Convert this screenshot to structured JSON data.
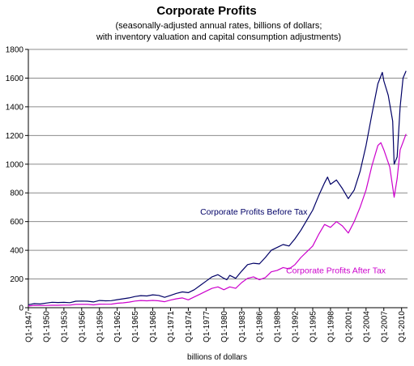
{
  "chart_data": {
    "type": "line",
    "title": "Corporate Profits",
    "subtitle_lines": [
      "(seasonally-adjusted annual rates, billions of dollars;",
      "with inventory valuation and capital consumption adjustments)"
    ],
    "xlabel": "billions of dollars",
    "ylabel": "",
    "ylim": [
      0,
      1800
    ],
    "yticks": [
      0,
      200,
      400,
      600,
      800,
      1000,
      1200,
      1400,
      1600,
      1800
    ],
    "xlim": [
      1947.0,
      2011.0
    ],
    "xticks": [
      "Q1-1947",
      "Q1-1950",
      "Q1-1953",
      "Q1-1956",
      "Q1-1959",
      "Q1-1962",
      "Q1-1965",
      "Q1-1968",
      "Q1-1971",
      "Q1-1974",
      "Q1-1977",
      "Q1-1980",
      "Q1-1983",
      "Q1-1986",
      "Q1-1989",
      "Q1-1992",
      "Q1-1995",
      "Q1-1998",
      "Q1-2001",
      "Q1-2004",
      "Q1-2007",
      "Q1-2010"
    ],
    "grid": true,
    "series": [
      {
        "name": "Corporate Profits Before Tax",
        "color": "#000066",
        "points": [
          [
            1947.0,
            21
          ],
          [
            1948.0,
            28
          ],
          [
            1949.0,
            26
          ],
          [
            1950.0,
            32
          ],
          [
            1951.0,
            38
          ],
          [
            1952.0,
            36
          ],
          [
            1953.0,
            37
          ],
          [
            1954.0,
            35
          ],
          [
            1955.0,
            45
          ],
          [
            1956.0,
            46
          ],
          [
            1957.0,
            45
          ],
          [
            1958.0,
            40
          ],
          [
            1959.0,
            50
          ],
          [
            1960.0,
            48
          ],
          [
            1961.0,
            49
          ],
          [
            1962.0,
            56
          ],
          [
            1963.0,
            62
          ],
          [
            1964.0,
            68
          ],
          [
            1965.0,
            78
          ],
          [
            1966.0,
            84
          ],
          [
            1967.0,
            82
          ],
          [
            1968.0,
            90
          ],
          [
            1969.0,
            86
          ],
          [
            1970.0,
            72
          ],
          [
            1971.0,
            86
          ],
          [
            1972.0,
            100
          ],
          [
            1973.0,
            110
          ],
          [
            1974.0,
            105
          ],
          [
            1975.0,
            125
          ],
          [
            1976.0,
            155
          ],
          [
            1977.0,
            185
          ],
          [
            1978.0,
            215
          ],
          [
            1979.0,
            230
          ],
          [
            1980.0,
            205
          ],
          [
            1980.5,
            195
          ],
          [
            1981.0,
            225
          ],
          [
            1982.0,
            205
          ],
          [
            1983.0,
            255
          ],
          [
            1984.0,
            300
          ],
          [
            1985.0,
            310
          ],
          [
            1986.0,
            305
          ],
          [
            1987.0,
            350
          ],
          [
            1988.0,
            400
          ],
          [
            1989.0,
            420
          ],
          [
            1990.0,
            440
          ],
          [
            1991.0,
            430
          ],
          [
            1992.0,
            480
          ],
          [
            1993.0,
            540
          ],
          [
            1994.0,
            610
          ],
          [
            1995.0,
            680
          ],
          [
            1996.0,
            780
          ],
          [
            1997.0,
            870
          ],
          [
            1997.5,
            910
          ],
          [
            1998.0,
            860
          ],
          [
            1999.0,
            890
          ],
          [
            2000.0,
            830
          ],
          [
            2001.0,
            760
          ],
          [
            2002.0,
            820
          ],
          [
            2003.0,
            950
          ],
          [
            2004.0,
            1130
          ],
          [
            2005.0,
            1350
          ],
          [
            2006.0,
            1560
          ],
          [
            2006.75,
            1640
          ],
          [
            2007.0,
            1580
          ],
          [
            2007.75,
            1480
          ],
          [
            2008.5,
            1300
          ],
          [
            2008.75,
            1000
          ],
          [
            2009.25,
            1050
          ],
          [
            2009.75,
            1400
          ],
          [
            2010.25,
            1600
          ],
          [
            2010.75,
            1650
          ]
        ]
      },
      {
        "name": "Corporate Profits After Tax",
        "color": "#cc00cc",
        "points": [
          [
            1947.0,
            12
          ],
          [
            1948.0,
            16
          ],
          [
            1949.0,
            15
          ],
          [
            1950.0,
            16
          ],
          [
            1951.0,
            17
          ],
          [
            1952.0,
            17
          ],
          [
            1953.0,
            18
          ],
          [
            1954.0,
            18
          ],
          [
            1955.0,
            23
          ],
          [
            1956.0,
            23
          ],
          [
            1957.0,
            23
          ],
          [
            1958.0,
            20
          ],
          [
            1959.0,
            25
          ],
          [
            1960.0,
            24
          ],
          [
            1961.0,
            25
          ],
          [
            1962.0,
            31
          ],
          [
            1963.0,
            34
          ],
          [
            1964.0,
            39
          ],
          [
            1965.0,
            46
          ],
          [
            1966.0,
            50
          ],
          [
            1967.0,
            48
          ],
          [
            1968.0,
            51
          ],
          [
            1969.0,
            48
          ],
          [
            1970.0,
            42
          ],
          [
            1971.0,
            53
          ],
          [
            1972.0,
            62
          ],
          [
            1973.0,
            68
          ],
          [
            1974.0,
            55
          ],
          [
            1975.0,
            75
          ],
          [
            1976.0,
            95
          ],
          [
            1977.0,
            115
          ],
          [
            1978.0,
            135
          ],
          [
            1979.0,
            145
          ],
          [
            1980.0,
            125
          ],
          [
            1981.0,
            145
          ],
          [
            1982.0,
            135
          ],
          [
            1983.0,
            175
          ],
          [
            1984.0,
            205
          ],
          [
            1985.0,
            215
          ],
          [
            1986.0,
            195
          ],
          [
            1987.0,
            210
          ],
          [
            1988.0,
            250
          ],
          [
            1989.0,
            260
          ],
          [
            1990.0,
            280
          ],
          [
            1991.0,
            270
          ],
          [
            1992.0,
            300
          ],
          [
            1993.0,
            350
          ],
          [
            1994.0,
            390
          ],
          [
            1995.0,
            430
          ],
          [
            1996.0,
            510
          ],
          [
            1997.0,
            580
          ],
          [
            1998.0,
            560
          ],
          [
            1999.0,
            600
          ],
          [
            2000.0,
            570
          ],
          [
            2001.0,
            520
          ],
          [
            2002.0,
            600
          ],
          [
            2003.0,
            700
          ],
          [
            2004.0,
            820
          ],
          [
            2005.0,
            990
          ],
          [
            2006.0,
            1130
          ],
          [
            2006.5,
            1150
          ],
          [
            2007.0,
            1100
          ],
          [
            2008.0,
            980
          ],
          [
            2008.75,
            770
          ],
          [
            2009.25,
            900
          ],
          [
            2009.75,
            1100
          ],
          [
            2010.75,
            1210
          ]
        ]
      }
    ],
    "annotations": [
      {
        "text": "Corporate Profits Before Tax",
        "x": 1976.0,
        "y": 650,
        "color": "#000066"
      },
      {
        "text": "Corporate Profits After Tax",
        "x": 1990.5,
        "y": 240,
        "color": "#cc00cc"
      }
    ]
  }
}
